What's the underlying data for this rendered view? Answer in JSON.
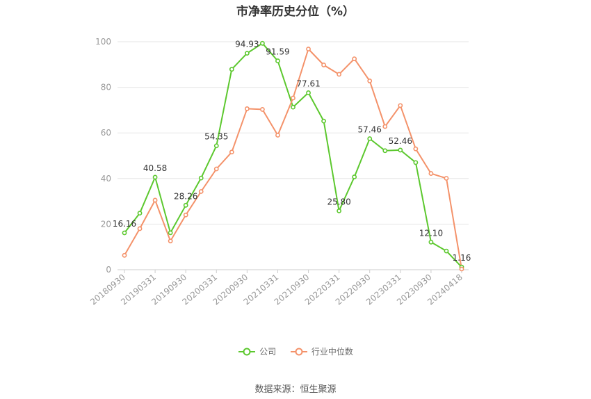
{
  "chart_data": {
    "type": "line",
    "title": "市净率历史分位（%）",
    "xlabel": "",
    "ylabel": "",
    "ylim": [
      0,
      100
    ],
    "yticks": [
      0,
      20,
      40,
      60,
      80,
      100
    ],
    "grid": true,
    "legend_position": "bottom",
    "x": [
      "20180930",
      "20181231",
      "20190331",
      "20190630",
      "20190930",
      "20191231",
      "20200331",
      "20200630",
      "20200930",
      "20201231",
      "20210331",
      "20210630",
      "20210930",
      "20211231",
      "20220331",
      "20220630",
      "20220930",
      "20221231",
      "20230331",
      "20230630",
      "20230930",
      "20231231",
      "20240418"
    ],
    "x_tick_labels": [
      "20180930",
      "20190331",
      "20190930",
      "20200331",
      "20200930",
      "20210331",
      "20210930",
      "20220331",
      "20220930",
      "20230331",
      "20230930",
      "20240418"
    ],
    "series": [
      {
        "name": "公司",
        "color": "#5cc82e",
        "values": [
          16.16,
          24.8,
          40.58,
          16.2,
          28.26,
          40.2,
          54.35,
          87.9,
          94.93,
          99.3,
          91.59,
          71.3,
          77.61,
          65.2,
          25.8,
          40.7,
          57.46,
          52.2,
          52.46,
          47.0,
          12.1,
          8.2,
          1.16
        ],
        "labels": {
          "0": "16.16",
          "2": "40.58",
          "4": "28.26",
          "6": "54.35",
          "8": "94.93",
          "10": "91.59",
          "12": "77.61",
          "14": "25.80",
          "16": "57.46",
          "18": "52.46",
          "20": "12.10",
          "22": "1.16"
        }
      },
      {
        "name": "行业中位数",
        "color": "#f4926a",
        "values": [
          6.3,
          18.0,
          30.5,
          12.6,
          24.0,
          34.3,
          44.2,
          51.6,
          70.6,
          70.3,
          59.0,
          75.3,
          96.8,
          89.8,
          85.7,
          92.5,
          82.8,
          62.8,
          72.0,
          53.0,
          42.2,
          40.1,
          0.3
        ]
      }
    ]
  },
  "source_text": "数据来源：恒生聚源"
}
